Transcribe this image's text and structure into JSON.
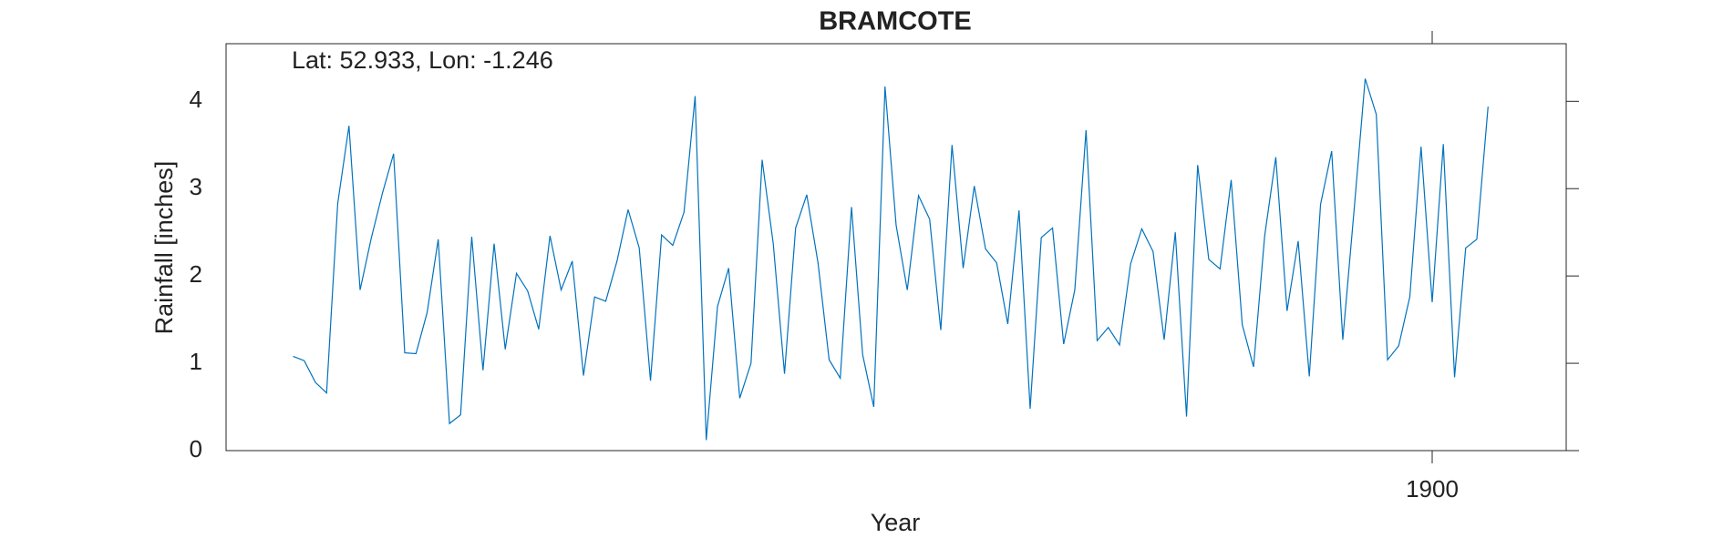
{
  "chart_data": {
    "type": "line",
    "title": "BRAMCOTE",
    "annotation": "Lat: 52.933, Lon: -1.246",
    "x_label": "Year",
    "y_label": "Rainfall [inches]",
    "xlim": [
      1891,
      1901
    ],
    "xticks": [
      1900
    ],
    "ylim": [
      0,
      4.66
    ],
    "yticks": [
      0,
      1,
      2,
      3,
      4
    ],
    "x": [
      1891.5,
      1891.583,
      1891.667,
      1891.75,
      1891.833,
      1891.917,
      1892,
      1892.083,
      1892.167,
      1892.25,
      1892.333,
      1892.417,
      1892.5,
      1892.583,
      1892.667,
      1892.75,
      1892.833,
      1892.917,
      1893,
      1893.083,
      1893.167,
      1893.25,
      1893.333,
      1893.417,
      1893.5,
      1893.583,
      1893.667,
      1893.75,
      1893.833,
      1893.917,
      1894,
      1894.083,
      1894.167,
      1894.25,
      1894.333,
      1894.417,
      1894.5,
      1894.583,
      1894.667,
      1894.75,
      1894.833,
      1894.917,
      1895,
      1895.083,
      1895.167,
      1895.25,
      1895.333,
      1895.417,
      1895.5,
      1895.583,
      1895.667,
      1895.75,
      1895.833,
      1895.917,
      1896,
      1896.083,
      1896.167,
      1896.25,
      1896.333,
      1896.417,
      1896.5,
      1896.583,
      1896.667,
      1896.75,
      1896.833,
      1896.917,
      1897,
      1897.083,
      1897.167,
      1897.25,
      1897.333,
      1897.417,
      1897.5,
      1897.583,
      1897.667,
      1897.75,
      1897.833,
      1897.917,
      1898,
      1898.083,
      1898.167,
      1898.25,
      1898.333,
      1898.417,
      1898.5,
      1898.583,
      1898.667,
      1898.75,
      1898.833,
      1898.917,
      1899,
      1899.083,
      1899.167,
      1899.25,
      1899.333,
      1899.417,
      1899.5,
      1899.583,
      1899.667,
      1899.75,
      1899.833,
      1899.917,
      1900,
      1900.083,
      1900.167,
      1900.25,
      1900.333,
      1900.417
    ],
    "series": [
      {
        "name": "Rainfall",
        "color": "#0072bd",
        "values": [
          1.08,
          1.03,
          0.78,
          0.66,
          2.83,
          3.72,
          1.84,
          2.43,
          2.95,
          3.4,
          1.12,
          1.11,
          1.58,
          2.42,
          0.31,
          0.41,
          2.45,
          0.92,
          2.37,
          1.16,
          2.03,
          1.83,
          1.39,
          2.46,
          1.84,
          2.17,
          0.86,
          1.76,
          1.71,
          2.17,
          2.76,
          2.32,
          0.8,
          2.47,
          2.35,
          2.73,
          4.06,
          0.12,
          1.65,
          2.09,
          0.6,
          1.0,
          3.33,
          2.37,
          0.88,
          2.55,
          2.93,
          2.15,
          1.04,
          0.83,
          2.79,
          1.1,
          0.5,
          4.17,
          2.58,
          1.84,
          2.92,
          2.65,
          1.38,
          3.5,
          2.09,
          3.03,
          2.31,
          2.15,
          1.45,
          2.75,
          0.48,
          2.44,
          2.55,
          1.22,
          1.84,
          3.67,
          1.26,
          1.41,
          1.21,
          2.14,
          2.54,
          2.28,
          1.27,
          2.5,
          0.39,
          3.27,
          2.19,
          2.08,
          3.1,
          1.44,
          0.96,
          2.46,
          3.36,
          1.6,
          2.4,
          0.85,
          2.82,
          3.43,
          1.27,
          2.75,
          4.26,
          3.85,
          1.04,
          1.2,
          1.76,
          3.48,
          1.7,
          3.51,
          0.84,
          2.32,
          2.42,
          3.94
        ]
      }
    ]
  }
}
